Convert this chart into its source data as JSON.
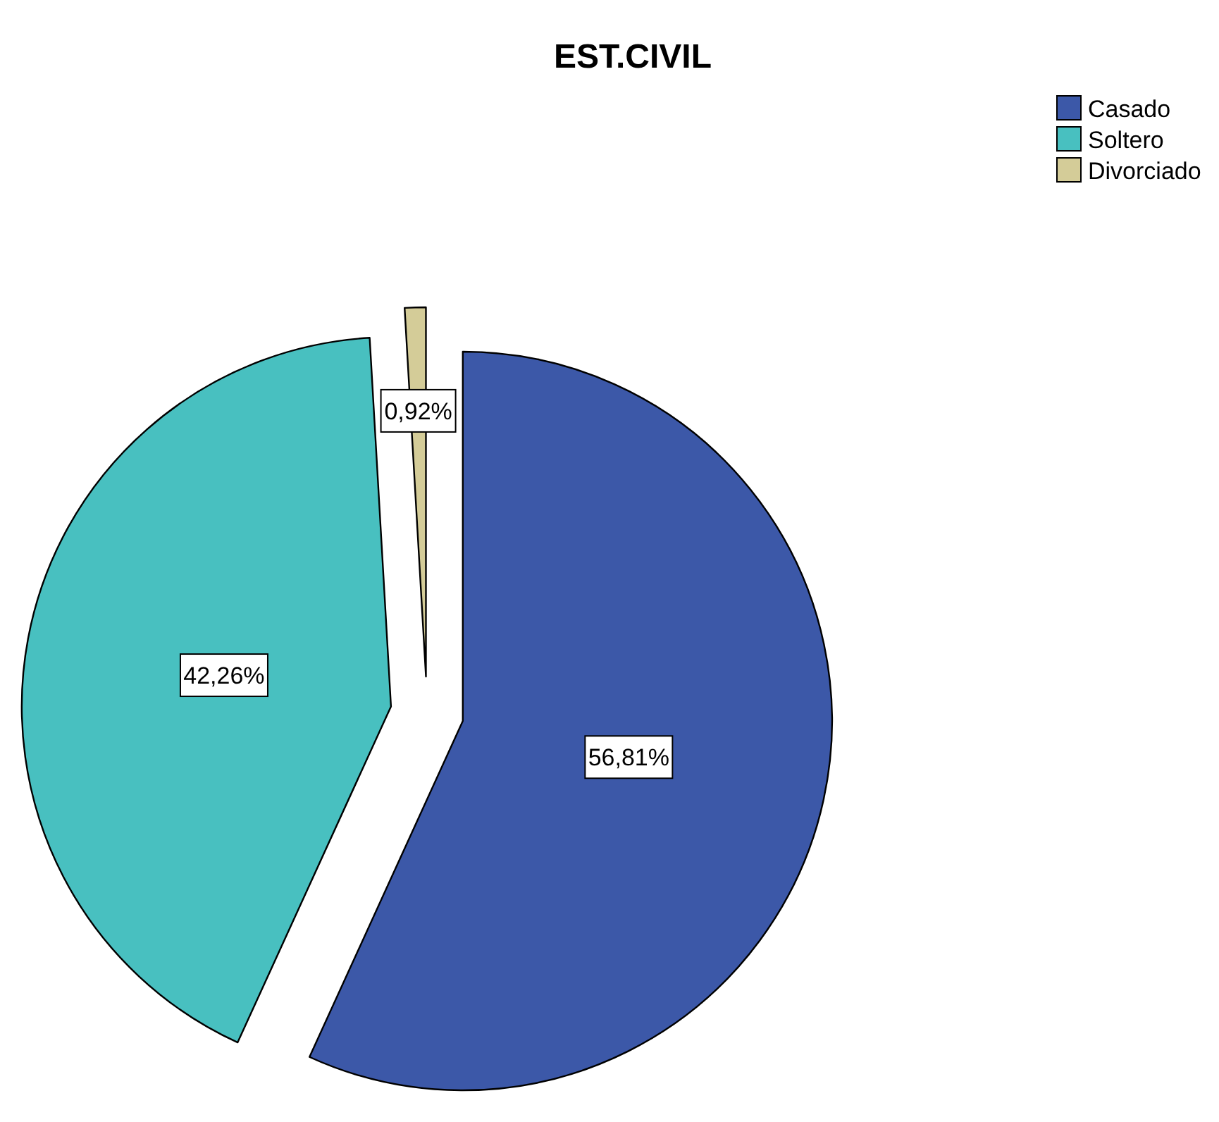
{
  "chart_data": {
    "type": "pie",
    "title": "EST.CIVIL",
    "categories": [
      "Casado",
      "Soltero",
      "Divorciado"
    ],
    "values": [
      56.81,
      42.26,
      0.92
    ],
    "colors": [
      "#3c58a8",
      "#48c0c0",
      "#d4cc98"
    ],
    "value_labels": [
      "56,81%",
      "42,26%",
      "0,92%"
    ],
    "legend": "top right"
  }
}
